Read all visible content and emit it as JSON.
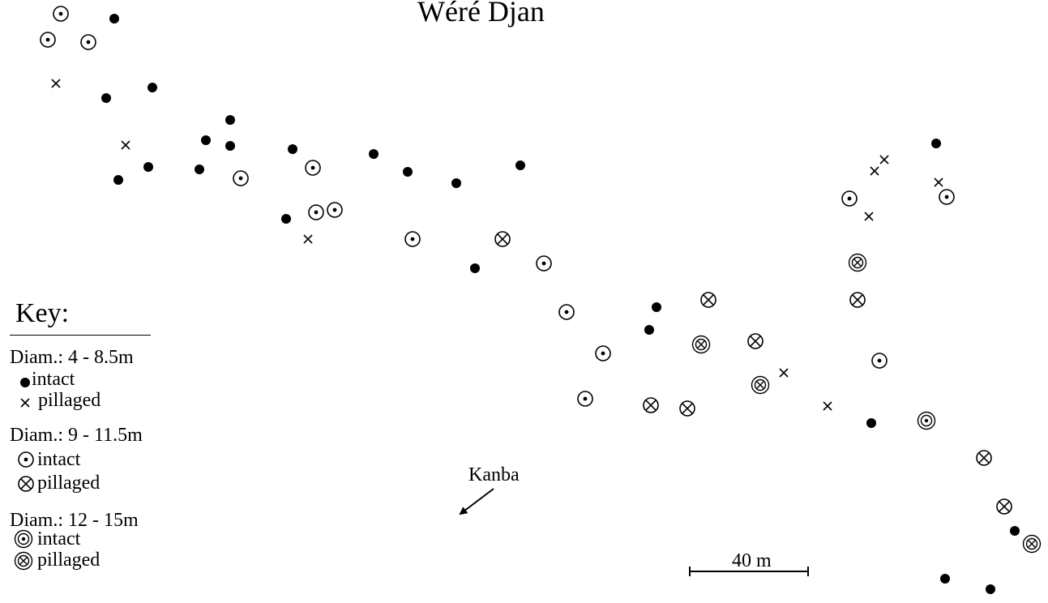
{
  "title": "Wéré Djan",
  "legend": {
    "title": "Key:",
    "groups": [
      {
        "label": "Diam.: 4 - 8.5m",
        "intact": "intact",
        "pillaged": "pillaged"
      },
      {
        "label": "Diam.: 9 - 11.5m",
        "intact": "intact",
        "pillaged": "pillaged"
      },
      {
        "label": "Diam.: 12 - 15m",
        "intact": "intact",
        "pillaged": "pillaged"
      }
    ]
  },
  "direction_label": "Kanba",
  "scale": {
    "label": "40 m"
  },
  "symbol_icons": {
    "small_intact": "filled-dot-icon",
    "small_pillaged": "cross-icon",
    "medium_intact": "circle-dot-icon",
    "medium_pillaged": "circle-cross-icon",
    "large_intact": "double-circle-dot-icon",
    "large_pillaged": "double-circle-cross-icon"
  },
  "colors": {
    "ink": "#000000",
    "background": "#ffffff"
  }
}
